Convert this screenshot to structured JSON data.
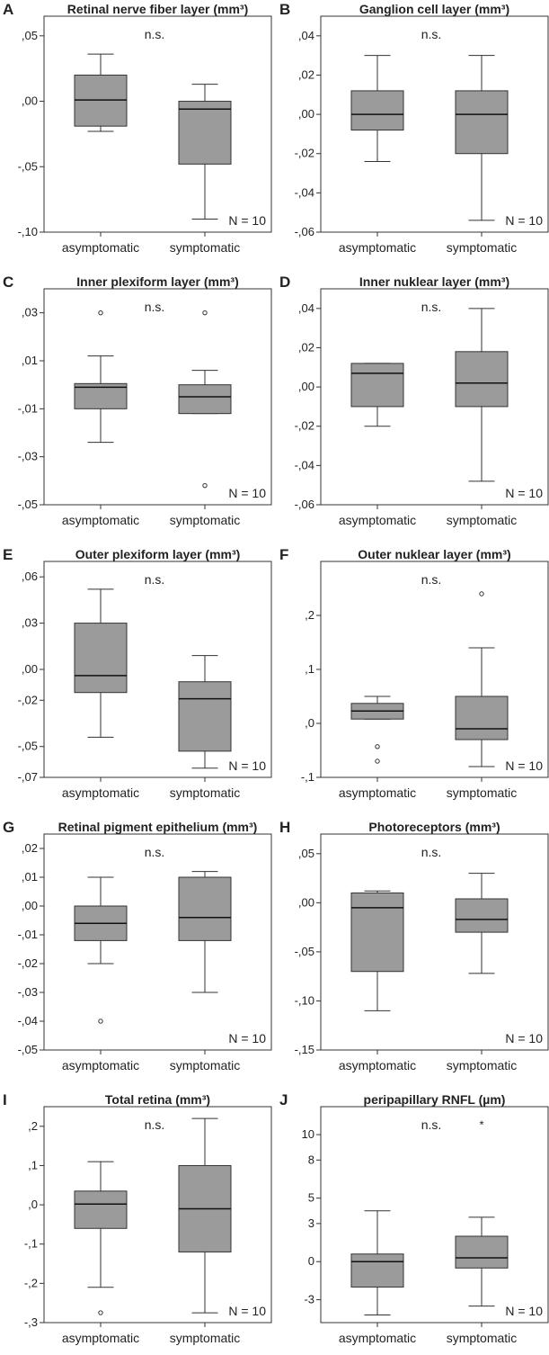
{
  "common": {
    "categories": [
      "asymptomatic",
      "symptomatic"
    ],
    "significance": "n.s.",
    "n_label": "N = 10"
  },
  "chart_data": [
    {
      "type": "box",
      "label": "A",
      "title": "Retinal nerve fiber layer (mm³)",
      "ylim": [
        -0.1,
        0.065
      ],
      "yticks": [
        -0.1,
        -0.05,
        0.0,
        0.05
      ],
      "ytick_labels": [
        "-,10",
        "-,05",
        ",00",
        ",05"
      ],
      "boxes": [
        {
          "category": "asymptomatic",
          "min": -0.023,
          "q1": -0.019,
          "median": 0.001,
          "q3": 0.02,
          "max": 0.036,
          "outliers": []
        },
        {
          "category": "symptomatic",
          "min": -0.09,
          "q1": -0.048,
          "median": -0.006,
          "q3": 0.0,
          "max": 0.013,
          "outliers": []
        }
      ]
    },
    {
      "type": "box",
      "label": "B",
      "title": "Ganglion cell layer (mm³)",
      "ylim": [
        -0.06,
        0.05
      ],
      "yticks": [
        -0.06,
        -0.04,
        -0.02,
        0.0,
        0.02,
        0.04
      ],
      "ytick_labels": [
        "-,06",
        "-,04",
        "-,02",
        ",00",
        ",02",
        ",04"
      ],
      "boxes": [
        {
          "category": "asymptomatic",
          "min": -0.024,
          "q1": -0.008,
          "median": 0.0,
          "q3": 0.012,
          "max": 0.03,
          "outliers": []
        },
        {
          "category": "symptomatic",
          "min": -0.054,
          "q1": -0.02,
          "median": 0.0,
          "q3": 0.012,
          "max": 0.03,
          "outliers": []
        }
      ]
    },
    {
      "type": "box",
      "label": "C",
      "title": "Inner plexiform layer (mm³)",
      "ylim": [
        -0.05,
        0.04
      ],
      "yticks": [
        -0.05,
        -0.03,
        -0.01,
        0.01,
        0.03
      ],
      "ytick_labels": [
        "-,05",
        "-,03",
        "-,01",
        ",01",
        ",03"
      ],
      "boxes": [
        {
          "category": "asymptomatic",
          "min": -0.024,
          "q1": -0.01,
          "median": -0.001,
          "q3": 0.0005,
          "max": 0.012,
          "outliers": [
            0.03
          ]
        },
        {
          "category": "symptomatic",
          "min": -0.012,
          "q1": -0.012,
          "median": -0.005,
          "q3": 0.0,
          "max": 0.006,
          "outliers": [
            0.03,
            -0.042
          ]
        }
      ]
    },
    {
      "type": "box",
      "label": "D",
      "title": "Inner nuklear layer (mm³)",
      "ylim": [
        -0.06,
        0.05
      ],
      "yticks": [
        -0.06,
        -0.04,
        -0.02,
        0.0,
        0.02,
        0.04
      ],
      "ytick_labels": [
        "-,06",
        "-,04",
        "-,02",
        ",00",
        ",02",
        ",04"
      ],
      "boxes": [
        {
          "category": "asymptomatic",
          "min": -0.02,
          "q1": -0.01,
          "median": 0.007,
          "q3": 0.012,
          "max": 0.012,
          "outliers": []
        },
        {
          "category": "symptomatic",
          "min": -0.048,
          "q1": -0.01,
          "median": 0.002,
          "q3": 0.018,
          "max": 0.04,
          "outliers": []
        }
      ]
    },
    {
      "type": "box",
      "label": "E",
      "title": "Outer plexiform layer (mm³)",
      "ylim": [
        -0.07,
        0.07
      ],
      "yticks": [
        -0.07,
        -0.05,
        -0.02,
        0.0,
        0.03,
        0.06
      ],
      "ytick_labels": [
        "-,07",
        "-,05",
        "-,02",
        ",00",
        ",03",
        ",06"
      ],
      "boxes": [
        {
          "category": "asymptomatic",
          "min": -0.044,
          "q1": -0.015,
          "median": -0.004,
          "q3": 0.03,
          "max": 0.052,
          "outliers": []
        },
        {
          "category": "symptomatic",
          "min": -0.064,
          "q1": -0.053,
          "median": -0.019,
          "q3": -0.008,
          "max": 0.009,
          "outliers": []
        }
      ]
    },
    {
      "type": "box",
      "label": "F",
      "title": "Outer nuklear layer (mm³)",
      "ylim": [
        -0.1,
        0.3
      ],
      "yticks": [
        -0.1,
        0.0,
        0.1,
        0.2
      ],
      "ytick_labels": [
        "-,1",
        ",0",
        ",1",
        ",2"
      ],
      "boxes": [
        {
          "category": "asymptomatic",
          "min": 0.008,
          "q1": 0.008,
          "median": 0.023,
          "q3": 0.037,
          "max": 0.05,
          "outliers": [
            -0.043,
            -0.07
          ]
        },
        {
          "category": "symptomatic",
          "min": -0.08,
          "q1": -0.03,
          "median": -0.01,
          "q3": 0.05,
          "max": 0.14,
          "outliers": [
            0.24
          ]
        }
      ]
    },
    {
      "type": "box",
      "label": "G",
      "title": "Retinal pigment epithelium (mm³)",
      "ylim": [
        -0.05,
        0.025
      ],
      "yticks": [
        -0.05,
        -0.04,
        -0.03,
        -0.02,
        -0.01,
        0.0,
        0.01,
        0.02
      ],
      "ytick_labels": [
        "-,05",
        "-,04",
        "-,03",
        "-,02",
        "-,01",
        ",00",
        ",01",
        ",02"
      ],
      "boxes": [
        {
          "category": "asymptomatic",
          "min": -0.02,
          "q1": -0.012,
          "median": -0.006,
          "q3": 0.0,
          "max": 0.01,
          "outliers": [
            -0.04
          ]
        },
        {
          "category": "symptomatic",
          "min": -0.03,
          "q1": -0.012,
          "median": -0.004,
          "q3": 0.01,
          "max": 0.012,
          "outliers": []
        }
      ]
    },
    {
      "type": "box",
      "label": "H",
      "title": "Photoreceptors (mm³)",
      "ylim": [
        -0.15,
        0.07
      ],
      "yticks": [
        -0.15,
        -0.1,
        -0.05,
        0.0,
        0.05
      ],
      "ytick_labels": [
        "-,15",
        "-,10",
        "-,05",
        ",00",
        ",05"
      ],
      "boxes": [
        {
          "category": "asymptomatic",
          "min": -0.11,
          "q1": -0.07,
          "median": -0.005,
          "q3": 0.01,
          "max": 0.012,
          "outliers": []
        },
        {
          "category": "symptomatic",
          "min": -0.072,
          "q1": -0.03,
          "median": -0.017,
          "q3": 0.004,
          "max": 0.03,
          "outliers": []
        }
      ]
    },
    {
      "type": "box",
      "label": "I",
      "title": "Total retina (mm³)",
      "ylim": [
        -0.3,
        0.25
      ],
      "yticks": [
        -0.3,
        -0.2,
        -0.1,
        0.0,
        0.1,
        0.2
      ],
      "ytick_labels": [
        "-,3",
        "-,2",
        "-,1",
        ",0",
        ",1",
        ",2"
      ],
      "boxes": [
        {
          "category": "asymptomatic",
          "min": -0.21,
          "q1": -0.06,
          "median": 0.002,
          "q3": 0.035,
          "max": 0.11,
          "outliers": [
            -0.275
          ]
        },
        {
          "category": "symptomatic",
          "min": -0.275,
          "q1": -0.12,
          "median": -0.01,
          "q3": 0.1,
          "max": 0.22,
          "outliers": []
        }
      ]
    },
    {
      "type": "box",
      "label": "J",
      "title": "peripapillary RNFL (µm)",
      "ylim": [
        -4.8,
        12.2
      ],
      "yticks": [
        -3,
        0,
        3,
        5,
        8,
        10
      ],
      "ytick_labels": [
        "-3",
        "0",
        "3",
        "5",
        "8",
        "10"
      ],
      "boxes": [
        {
          "category": "asymptomatic",
          "min": -4.2,
          "q1": -2.0,
          "median": 0.0,
          "q3": 0.6,
          "max": 4.0,
          "outliers": []
        },
        {
          "category": "symptomatic",
          "min": -3.5,
          "q1": -0.5,
          "median": 0.3,
          "q3": 2.0,
          "max": 3.5,
          "outliers": [],
          "extremes": [
            10.9
          ]
        }
      ]
    }
  ]
}
